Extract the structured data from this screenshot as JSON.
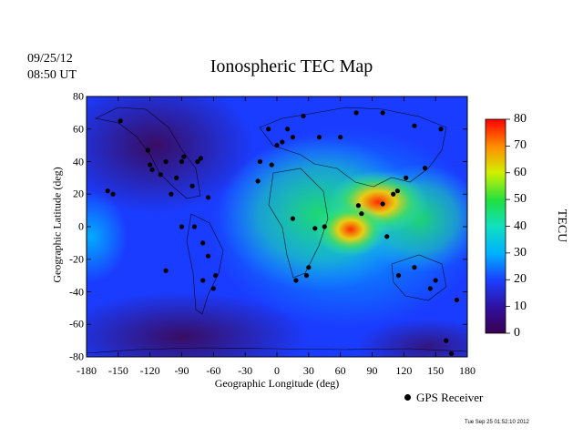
{
  "date": "09/25/12",
  "time": "08:50 UT",
  "footer_timestamp": "Tue Sep 25 01:52:10 2012",
  "chart_data": {
    "type": "heatmap",
    "title": "Ionospheric TEC Map",
    "xlabel": "Geographic Longitude (deg)",
    "ylabel": "Geographic Latitude (deg)",
    "xlim": [
      -180,
      180
    ],
    "ylim": [
      -80,
      80
    ],
    "xticks": [
      "-180",
      "-150",
      "-120",
      "-90",
      "-60",
      "-30",
      "0",
      "30",
      "60",
      "90",
      "120",
      "150",
      "180"
    ],
    "yticks": [
      "80",
      "60",
      "40",
      "20",
      "0",
      "-20",
      "-40",
      "-60",
      "-80"
    ],
    "colorbar": {
      "label": "TECU",
      "range": [
        0,
        80
      ],
      "ticks": [
        "80",
        "70",
        "60",
        "50",
        "40",
        "30",
        "20",
        "10",
        "0"
      ]
    },
    "legend": "GPS Receiver",
    "tec_peaks": [
      {
        "lon": 105,
        "lat": 25,
        "value": 78
      },
      {
        "lon": 65,
        "lat": -5,
        "value": 75
      },
      {
        "lon": 150,
        "lat": 15,
        "value": 55
      },
      {
        "lon": 20,
        "lat": 10,
        "value": 48
      }
    ],
    "receivers": [
      [
        -148,
        65
      ],
      [
        -155,
        20
      ],
      [
        -160,
        22
      ],
      [
        -122,
        47
      ],
      [
        -120,
        38
      ],
      [
        -118,
        35
      ],
      [
        -110,
        32
      ],
      [
        -105,
        40
      ],
      [
        -95,
        30
      ],
      [
        -90,
        40
      ],
      [
        -88,
        43
      ],
      [
        -80,
        25
      ],
      [
        -75,
        40
      ],
      [
        -72,
        42
      ],
      [
        -65,
        18
      ],
      [
        -100,
        20
      ],
      [
        -78,
        0
      ],
      [
        -90,
        0
      ],
      [
        -70,
        -10
      ],
      [
        -65,
        -18
      ],
      [
        -58,
        -30
      ],
      [
        -60,
        -38
      ],
      [
        -70,
        -33
      ],
      [
        -105,
        -27
      ],
      [
        -18,
        28
      ],
      [
        -16,
        40
      ],
      [
        -5,
        38
      ],
      [
        0,
        50
      ],
      [
        5,
        52
      ],
      [
        10,
        60
      ],
      [
        15,
        55
      ],
      [
        25,
        68
      ],
      [
        40,
        55
      ],
      [
        60,
        55
      ],
      [
        75,
        70
      ],
      [
        100,
        70
      ],
      [
        130,
        62
      ],
      [
        155,
        60
      ],
      [
        -8,
        60
      ],
      [
        30,
        -25
      ],
      [
        28,
        -30
      ],
      [
        18,
        -33
      ],
      [
        36,
        -1
      ],
      [
        45,
        0
      ],
      [
        15,
        5
      ],
      [
        77,
        13
      ],
      [
        80,
        8
      ],
      [
        100,
        14
      ],
      [
        104,
        -6
      ],
      [
        110,
        20
      ],
      [
        114,
        22
      ],
      [
        122,
        30
      ],
      [
        140,
        36
      ],
      [
        145,
        -38
      ],
      [
        150,
        -33
      ],
      [
        115,
        -30
      ],
      [
        130,
        -25
      ],
      [
        170,
        -45
      ],
      [
        160,
        -70
      ],
      [
        165,
        -78
      ]
    ]
  }
}
